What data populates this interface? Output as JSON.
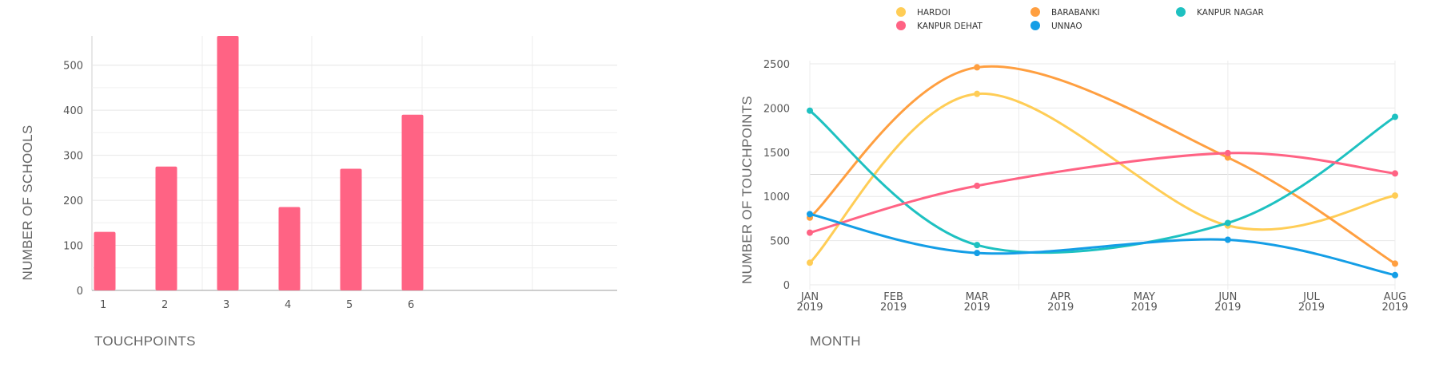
{
  "chart_data": [
    {
      "type": "bar",
      "categories": [
        "1",
        "2",
        "3",
        "4",
        "5",
        "6"
      ],
      "values": [
        130,
        275,
        565,
        185,
        270,
        390
      ],
      "title": "",
      "xlabel": "TOUCHPOINTS",
      "ylabel": "NUMBER OF SCHOOLS",
      "yticks": [
        "0",
        "100",
        "200",
        "300",
        "400",
        "500"
      ],
      "ylim": [
        0,
        565
      ],
      "grid": true,
      "color": "#ff6384"
    },
    {
      "type": "line",
      "x": [
        "JAN 2019",
        "FEB 2019",
        "MAR 2019",
        "APR 2019",
        "MAY 2019",
        "JUN 2019",
        "JUL 2019",
        "AUG 2019"
      ],
      "x_month": [
        "JAN",
        "FEB",
        "MAR",
        "APR",
        "MAY",
        "JUN",
        "JUL",
        "AUG"
      ],
      "x_year": [
        "2019",
        "2019",
        "2019",
        "2019",
        "2019",
        "2019",
        "2019",
        "2019"
      ],
      "series": [
        {
          "name": "HARDOI",
          "color": "#ffcd56",
          "x": [
            "JAN 2019",
            "MAR 2019",
            "JUN 2019",
            "AUG 2019"
          ],
          "values": [
            250,
            2160,
            670,
            1010
          ]
        },
        {
          "name": "BARABANKI",
          "color": "#ff9f40",
          "x": [
            "JAN 2019",
            "MAR 2019",
            "JUN 2019",
            "AUG 2019"
          ],
          "values": [
            760,
            2460,
            1440,
            240
          ]
        },
        {
          "name": "KANPUR NAGAR",
          "color": "#1ec1c1",
          "x": [
            "JAN 2019",
            "MAR 2019",
            "JUN 2019",
            "AUG 2019"
          ],
          "values": [
            1970,
            450,
            700,
            1900
          ]
        },
        {
          "name": "KANPUR DEHAT",
          "color": "#ff6384",
          "x": [
            "JAN 2019",
            "MAR 2019",
            "JUN 2019",
            "AUG 2019"
          ],
          "values": [
            590,
            1120,
            1490,
            1260
          ]
        },
        {
          "name": "UNNAO",
          "color": "#149ee6",
          "x": [
            "JAN 2019",
            "MAR 2019",
            "JUN 2019",
            "AUG 2019"
          ],
          "values": [
            800,
            360,
            510,
            110
          ]
        }
      ],
      "title": "",
      "xlabel": "MONTH",
      "ylabel": "NUMBER OF TOUCHPOINTS",
      "yticks": [
        "0",
        "500",
        "1000",
        "1500",
        "2000",
        "2500"
      ],
      "ylim": [
        0,
        2500
      ],
      "grid": true,
      "legend_position": "top"
    }
  ]
}
